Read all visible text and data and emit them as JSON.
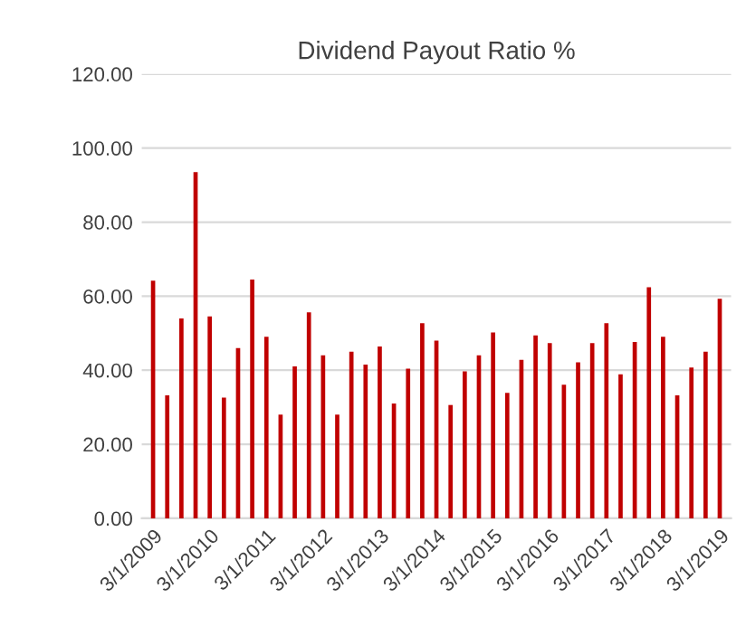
{
  "chart_data": {
    "type": "bar",
    "title": "Dividend Payout Ratio %",
    "categories": [
      "3/1/2009",
      null,
      null,
      null,
      "3/1/2010",
      null,
      null,
      null,
      "3/1/2011",
      null,
      null,
      null,
      "3/1/2012",
      null,
      null,
      null,
      "3/1/2013",
      null,
      null,
      null,
      "3/1/2014",
      null,
      null,
      null,
      "3/1/2015",
      null,
      null,
      null,
      "3/1/2016",
      null,
      null,
      null,
      "3/1/2017",
      null,
      null,
      null,
      "3/1/2018",
      null,
      null,
      null,
      "3/1/2019"
    ],
    "values": [
      64.2,
      33.2,
      54,
      93.5,
      54.5,
      32.6,
      46,
      64.5,
      49,
      28,
      41,
      55.6,
      44,
      28,
      45,
      41.5,
      46.4,
      31,
      40.4,
      52.7,
      48,
      30.6,
      39.7,
      44,
      50.2,
      33.9,
      42.8,
      49.4,
      47.3,
      36.1,
      42.1,
      47.3,
      52.7,
      38.9,
      47.6,
      62.4,
      49,
      33.2,
      40.7,
      45,
      59.3
    ],
    "color": "#c00000",
    "ylim": [
      0,
      120
    ],
    "yticks": [
      {
        "value": 0,
        "label": "0.00"
      },
      {
        "value": 20,
        "label": "20.00"
      },
      {
        "value": 40,
        "label": "40.00"
      },
      {
        "value": 60,
        "label": "60.00"
      },
      {
        "value": 80,
        "label": "80.00"
      },
      {
        "value": 100,
        "label": "100.00"
      },
      {
        "value": 120,
        "label": "120.00"
      }
    ],
    "grid": "y",
    "legend": false
  }
}
